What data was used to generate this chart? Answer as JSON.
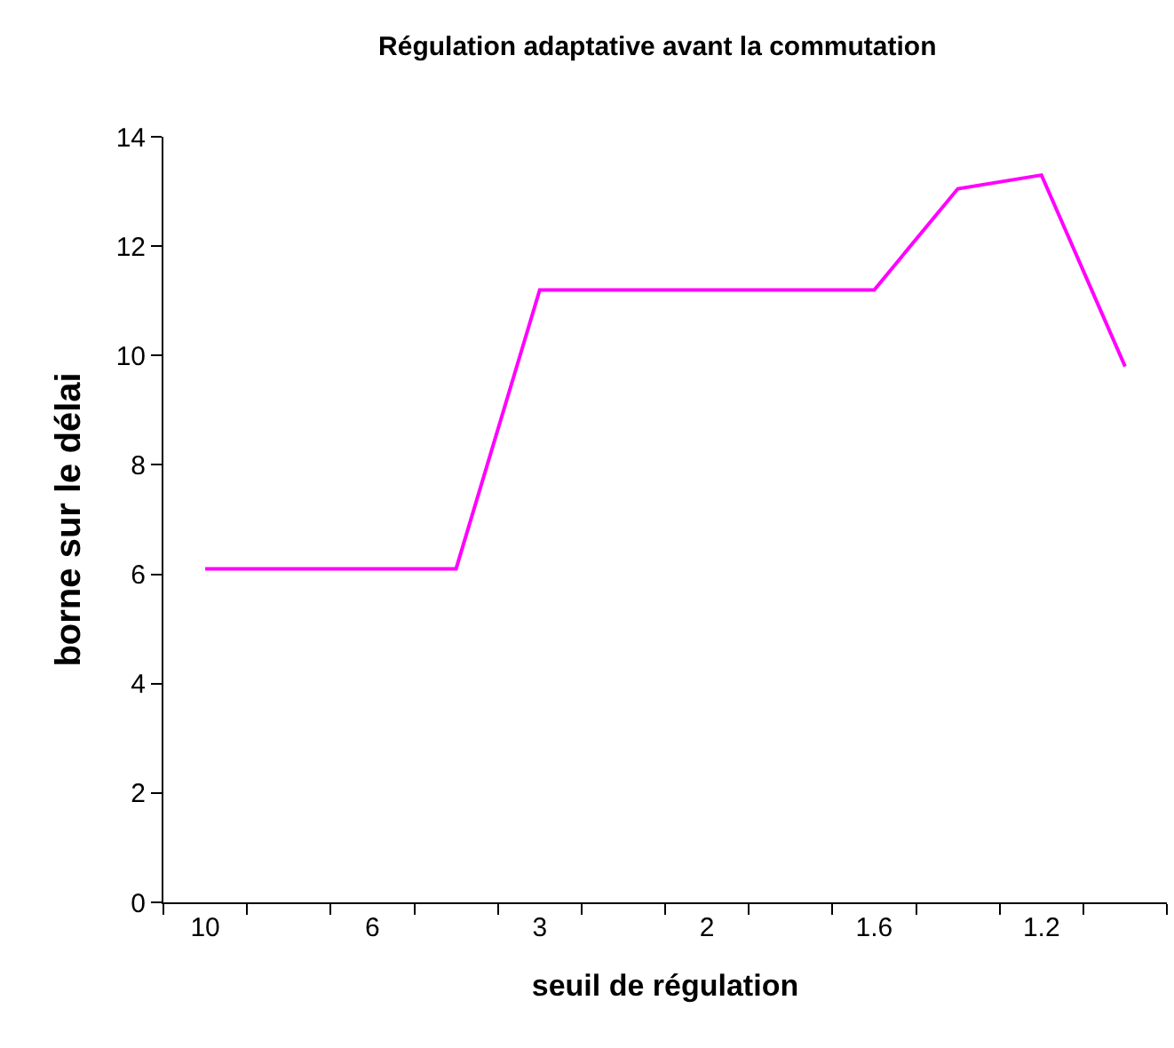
{
  "chart_data": {
    "type": "line",
    "title": "Régulation adaptative avant la commutation",
    "xlabel": "seuil de régulation",
    "ylabel": "borne sur le délai",
    "categories": [
      "10",
      null,
      "6",
      null,
      "3",
      null,
      "2",
      null,
      "1.6",
      null,
      "1.2",
      null
    ],
    "series": [
      {
        "color": "#ff00ff",
        "values": [
          6.1,
          6.1,
          6.1,
          6.1,
          11.2,
          11.2,
          11.2,
          11.2,
          11.2,
          13.05,
          13.3,
          9.8
        ]
      }
    ],
    "ylim": [
      0,
      14
    ],
    "yticks": [
      0,
      2,
      4,
      6,
      8,
      10,
      12,
      14
    ],
    "grid": false,
    "marker": "none",
    "line_style": "solid"
  }
}
